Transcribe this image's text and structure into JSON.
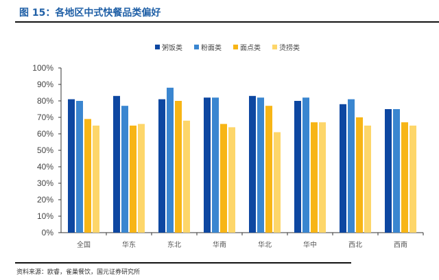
{
  "title": "图 15：各地区中式快餐品类偏好",
  "source": "资料来源：欧睿，雀巢餐饮，国元证券研究所",
  "chart_data": {
    "type": "bar",
    "title": "图 15：各地区中式快餐品类偏好",
    "categories": [
      "全国",
      "华东",
      "东北",
      "华南",
      "华北",
      "华中",
      "西北",
      "西南"
    ],
    "series": [
      {
        "name": "粥饭类",
        "color": "#0d47a1",
        "values": [
          81,
          83,
          81,
          82,
          83,
          80,
          78,
          75
        ]
      },
      {
        "name": "粉面类",
        "color": "#3a86d0",
        "values": [
          80,
          77,
          88,
          82,
          82,
          82,
          81,
          75
        ]
      },
      {
        "name": "面点类",
        "color": "#f7b516",
        "values": [
          69,
          65,
          80,
          66,
          77,
          67,
          70,
          67
        ]
      },
      {
        "name": "烫捞类",
        "color": "#fdd66a",
        "values": [
          65,
          66,
          68,
          64,
          61,
          67,
          65,
          65
        ]
      }
    ],
    "ylim": [
      0,
      100
    ],
    "yticks": [
      "0%",
      "10%",
      "20%",
      "30%",
      "40%",
      "50%",
      "60%",
      "70%",
      "80%",
      "90%",
      "100%"
    ],
    "legend": "top-center",
    "grid": false
  }
}
